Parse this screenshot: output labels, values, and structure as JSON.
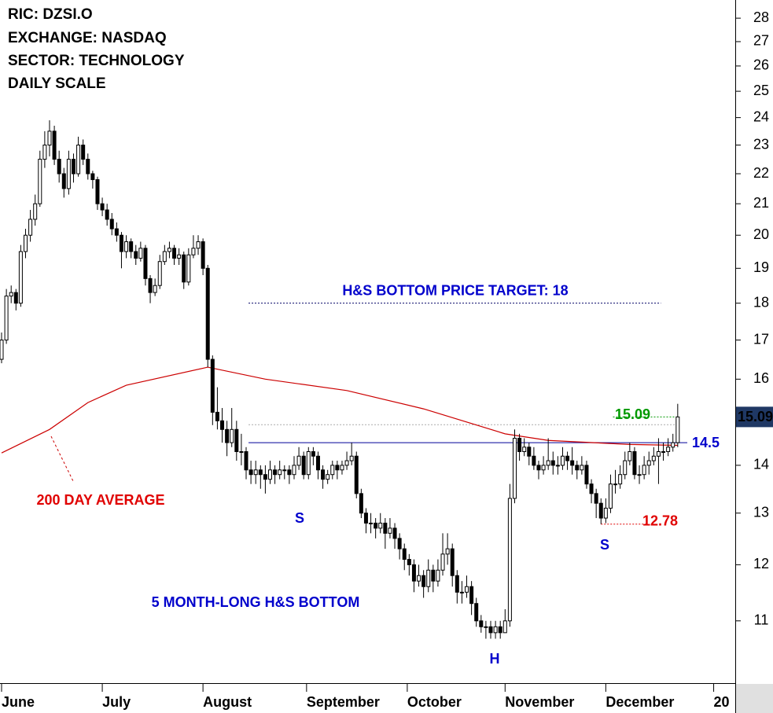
{
  "chart_data": {
    "type": "candlestick",
    "header": [
      "RIC: DZSI.O",
      "EXCHANGE: NASDAQ",
      "SECTOR: TECHNOLOGY",
      "DAILY SCALE"
    ],
    "log_scale": true,
    "ylim": [
      10,
      28.8
    ],
    "yticks": [
      11,
      12,
      13,
      14,
      15,
      16,
      17,
      18,
      19,
      20,
      21,
      22,
      23,
      24,
      25,
      26,
      27,
      28
    ],
    "xlim": [
      -0.33,
      153
    ],
    "xticks": [
      {
        "value": 0,
        "label": "June"
      },
      {
        "value": 21,
        "label": "July"
      },
      {
        "value": 42,
        "label": "August"
      },
      {
        "value": 63.6,
        "label": "September"
      },
      {
        "value": 84.6,
        "label": "October"
      },
      {
        "value": 105,
        "label": "November"
      },
      {
        "value": 126,
        "label": "December"
      },
      {
        "value": 148.5,
        "label": "20"
      }
    ],
    "up_color": "#ffffff",
    "down_color": "#000000",
    "ohlc": [
      [
        16.5,
        17.2,
        16.4,
        17.0
      ],
      [
        17.0,
        18.4,
        16.9,
        18.2
      ],
      [
        18.2,
        18.5,
        18.0,
        18.3
      ],
      [
        18.3,
        18.4,
        17.8,
        18.0
      ],
      [
        18.0,
        19.7,
        17.9,
        19.5
      ],
      [
        19.5,
        20.2,
        19.3,
        20.0
      ],
      [
        20.0,
        20.8,
        19.8,
        20.5
      ],
      [
        20.5,
        21.3,
        20.3,
        21.0
      ],
      [
        21.0,
        22.8,
        20.9,
        22.5
      ],
      [
        22.5,
        23.5,
        22.2,
        23.0
      ],
      [
        23.0,
        23.9,
        22.6,
        23.5
      ],
      [
        23.5,
        23.7,
        22.3,
        22.5
      ],
      [
        22.5,
        22.8,
        21.7,
        22.0
      ],
      [
        22.0,
        22.2,
        21.2,
        21.5
      ],
      [
        21.5,
        22.8,
        21.3,
        22.5
      ],
      [
        22.5,
        22.7,
        21.7,
        22.0
      ],
      [
        22.0,
        23.3,
        21.9,
        23.0
      ],
      [
        23.0,
        23.2,
        22.3,
        22.5
      ],
      [
        22.5,
        22.7,
        21.8,
        22.0
      ],
      [
        22.0,
        22.1,
        21.5,
        21.8
      ],
      [
        21.8,
        21.9,
        20.8,
        21.0
      ],
      [
        21.0,
        21.2,
        20.6,
        20.8
      ],
      [
        20.8,
        21.0,
        20.3,
        20.5
      ],
      [
        20.5,
        20.7,
        20.0,
        20.2
      ],
      [
        20.2,
        20.4,
        19.8,
        20.0
      ],
      [
        20.0,
        20.1,
        19.0,
        19.5
      ],
      [
        19.5,
        20.0,
        19.3,
        19.8
      ],
      [
        19.8,
        19.9,
        19.3,
        19.5
      ],
      [
        19.5,
        19.7,
        19.1,
        19.3
      ],
      [
        19.3,
        19.8,
        19.2,
        19.6
      ],
      [
        19.6,
        19.7,
        18.5,
        18.7
      ],
      [
        18.7,
        18.8,
        18.0,
        18.3
      ],
      [
        18.3,
        18.7,
        18.2,
        18.5
      ],
      [
        18.5,
        19.4,
        18.4,
        19.2
      ],
      [
        19.2,
        19.7,
        19.1,
        19.5
      ],
      [
        19.5,
        19.8,
        19.3,
        19.6
      ],
      [
        19.6,
        19.7,
        19.1,
        19.3
      ],
      [
        19.3,
        19.6,
        19.1,
        19.4
      ],
      [
        19.4,
        19.5,
        18.4,
        18.6
      ],
      [
        18.6,
        19.6,
        18.5,
        19.4
      ],
      [
        19.4,
        20.0,
        19.3,
        19.6
      ],
      [
        19.6,
        20.0,
        19.4,
        19.8
      ],
      [
        19.8,
        19.9,
        18.8,
        19.0
      ],
      [
        19.0,
        19.1,
        16.3,
        16.5
      ],
      [
        16.5,
        16.6,
        14.9,
        15.2
      ],
      [
        15.2,
        15.8,
        14.8,
        15.0
      ],
      [
        15.0,
        15.3,
        14.5,
        14.8
      ],
      [
        14.8,
        15.0,
        14.2,
        14.5
      ],
      [
        14.5,
        15.3,
        14.4,
        14.8
      ],
      [
        14.8,
        15.0,
        14.1,
        14.3
      ],
      [
        14.3,
        14.7,
        14.0,
        14.3
      ],
      [
        14.3,
        14.4,
        13.7,
        13.9
      ],
      [
        13.9,
        14.1,
        13.6,
        13.8
      ],
      [
        13.8,
        14.1,
        13.6,
        13.9
      ],
      [
        13.9,
        14.0,
        13.5,
        13.8
      ],
      [
        13.8,
        14.0,
        13.4,
        13.7
      ],
      [
        13.7,
        14.1,
        13.6,
        13.9
      ],
      [
        13.9,
        14.0,
        13.6,
        13.8
      ],
      [
        13.8,
        14.1,
        13.7,
        13.9
      ],
      [
        13.9,
        14.0,
        13.7,
        13.9
      ],
      [
        13.9,
        14.0,
        13.6,
        13.8
      ],
      [
        13.8,
        14.2,
        13.7,
        14.0
      ],
      [
        14.0,
        14.4,
        13.9,
        14.2
      ],
      [
        14.2,
        14.3,
        13.7,
        13.8
      ],
      [
        13.8,
        14.4,
        13.7,
        14.3
      ],
      [
        14.3,
        14.4,
        14.0,
        14.2
      ],
      [
        14.2,
        14.3,
        13.7,
        13.9
      ],
      [
        13.9,
        14.0,
        13.5,
        13.7
      ],
      [
        13.7,
        13.9,
        13.6,
        13.8
      ],
      [
        13.8,
        14.1,
        13.7,
        14.0
      ],
      [
        14.0,
        14.1,
        13.7,
        13.9
      ],
      [
        13.9,
        14.1,
        13.8,
        14.0
      ],
      [
        14.0,
        14.3,
        13.9,
        14.1
      ],
      [
        14.1,
        14.5,
        14.0,
        14.2
      ],
      [
        14.2,
        14.3,
        13.3,
        13.4
      ],
      [
        13.4,
        13.5,
        12.9,
        13.0
      ],
      [
        13.0,
        13.1,
        12.6,
        12.8
      ],
      [
        12.8,
        13.0,
        12.6,
        12.8
      ],
      [
        12.8,
        12.9,
        12.5,
        12.7
      ],
      [
        12.7,
        13.0,
        12.6,
        12.8
      ],
      [
        12.8,
        12.9,
        12.3,
        12.6
      ],
      [
        12.6,
        12.9,
        12.5,
        12.7
      ],
      [
        12.7,
        12.8,
        12.3,
        12.5
      ],
      [
        12.5,
        12.6,
        12.1,
        12.3
      ],
      [
        12.3,
        12.4,
        11.9,
        12.1
      ],
      [
        12.1,
        12.2,
        11.8,
        12.0
      ],
      [
        12.0,
        12.1,
        11.5,
        11.7
      ],
      [
        11.7,
        12.0,
        11.6,
        11.8
      ],
      [
        11.8,
        11.9,
        11.4,
        11.6
      ],
      [
        11.6,
        12.1,
        11.5,
        11.9
      ],
      [
        11.9,
        12.0,
        11.5,
        11.7
      ],
      [
        11.7,
        12.1,
        11.6,
        11.9
      ],
      [
        11.9,
        12.6,
        11.8,
        12.2
      ],
      [
        12.2,
        12.6,
        12.0,
        12.3
      ],
      [
        12.3,
        12.4,
        11.6,
        11.8
      ],
      [
        11.8,
        11.9,
        11.3,
        11.5
      ],
      [
        11.5,
        11.7,
        11.3,
        11.5
      ],
      [
        11.5,
        11.8,
        11.4,
        11.6
      ],
      [
        11.6,
        11.7,
        11.1,
        11.3
      ],
      [
        11.3,
        11.4,
        10.9,
        11.0
      ],
      [
        11.0,
        11.1,
        10.8,
        10.9
      ],
      [
        10.9,
        11.0,
        10.7,
        10.9
      ],
      [
        10.9,
        11.0,
        10.7,
        10.8
      ],
      [
        10.8,
        11.0,
        10.7,
        10.9
      ],
      [
        10.9,
        11.0,
        10.7,
        10.8
      ],
      [
        10.8,
        11.2,
        10.8,
        11.0
      ],
      [
        11.0,
        13.6,
        10.9,
        13.3
      ],
      [
        13.3,
        14.8,
        13.2,
        14.6
      ],
      [
        14.6,
        14.7,
        14.1,
        14.3
      ],
      [
        14.3,
        14.6,
        14.2,
        14.4
      ],
      [
        14.4,
        14.5,
        14.0,
        14.2
      ],
      [
        14.2,
        14.4,
        13.9,
        14.0
      ],
      [
        14.0,
        14.1,
        13.7,
        13.9
      ],
      [
        13.9,
        14.2,
        13.8,
        14.0
      ],
      [
        14.0,
        14.6,
        13.9,
        14.1
      ],
      [
        14.1,
        14.3,
        13.8,
        14.0
      ],
      [
        14.0,
        14.2,
        13.8,
        14.0
      ],
      [
        14.0,
        14.4,
        13.9,
        14.2
      ],
      [
        14.2,
        14.3,
        13.9,
        14.1
      ],
      [
        14.1,
        14.4,
        13.8,
        14.0
      ],
      [
        14.0,
        14.1,
        13.7,
        13.9
      ],
      [
        13.9,
        14.2,
        13.8,
        14.0
      ],
      [
        14.0,
        14.1,
        13.5,
        13.6
      ],
      [
        13.6,
        13.7,
        13.2,
        13.4
      ],
      [
        13.4,
        13.5,
        12.9,
        13.2
      ],
      [
        13.2,
        13.3,
        12.78,
        12.9
      ],
      [
        12.9,
        13.3,
        12.8,
        13.1
      ],
      [
        13.1,
        13.8,
        13.0,
        13.6
      ],
      [
        13.6,
        13.9,
        13.4,
        13.6
      ],
      [
        13.6,
        14.0,
        13.5,
        13.8
      ],
      [
        13.8,
        14.3,
        13.7,
        14.1
      ],
      [
        14.1,
        14.5,
        14.0,
        14.3
      ],
      [
        14.3,
        14.4,
        13.7,
        13.8
      ],
      [
        13.8,
        14.0,
        13.6,
        13.8
      ],
      [
        13.8,
        14.2,
        13.7,
        14.0
      ],
      [
        14.0,
        14.3,
        13.8,
        14.1
      ],
      [
        14.1,
        14.4,
        14.0,
        14.2
      ],
      [
        14.2,
        14.6,
        13.6,
        14.3
      ],
      [
        14.3,
        14.5,
        14.1,
        14.3
      ],
      [
        14.3,
        14.6,
        14.2,
        14.4
      ],
      [
        14.4,
        14.7,
        14.3,
        14.5
      ],
      [
        14.5,
        15.4,
        14.4,
        15.09
      ]
    ],
    "moving_average": {
      "name": "200 DAY AVERAGE",
      "color": "#cc0000",
      "x": [
        0,
        10,
        18,
        26,
        43,
        55,
        72,
        88,
        105,
        114,
        131,
        141
      ],
      "values": [
        14.27,
        14.8,
        15.43,
        15.85,
        16.3,
        16.0,
        15.72,
        15.28,
        14.7,
        14.55,
        14.46,
        14.44
      ]
    },
    "neckline": {
      "value": 14.5,
      "from": 51.5,
      "to": 143,
      "color": "#000099"
    },
    "target": {
      "value": 18,
      "from": 51.5,
      "to": 137.5,
      "label": "H&S BOTTOM PRICE TARGET: 18"
    },
    "breakout": {
      "value": 15.09,
      "from": 127.5,
      "to": 141,
      "color": "#009900"
    },
    "reference": {
      "value": 14.91,
      "from": 51.5,
      "to": 141
    },
    "low_mark": {
      "value": 12.78,
      "from": 125,
      "to": 134.5
    },
    "last_price": 15.09,
    "annotations": [
      "S",
      "S",
      "H",
      "5 MONTH-LONG H&S BOTTOM"
    ]
  }
}
